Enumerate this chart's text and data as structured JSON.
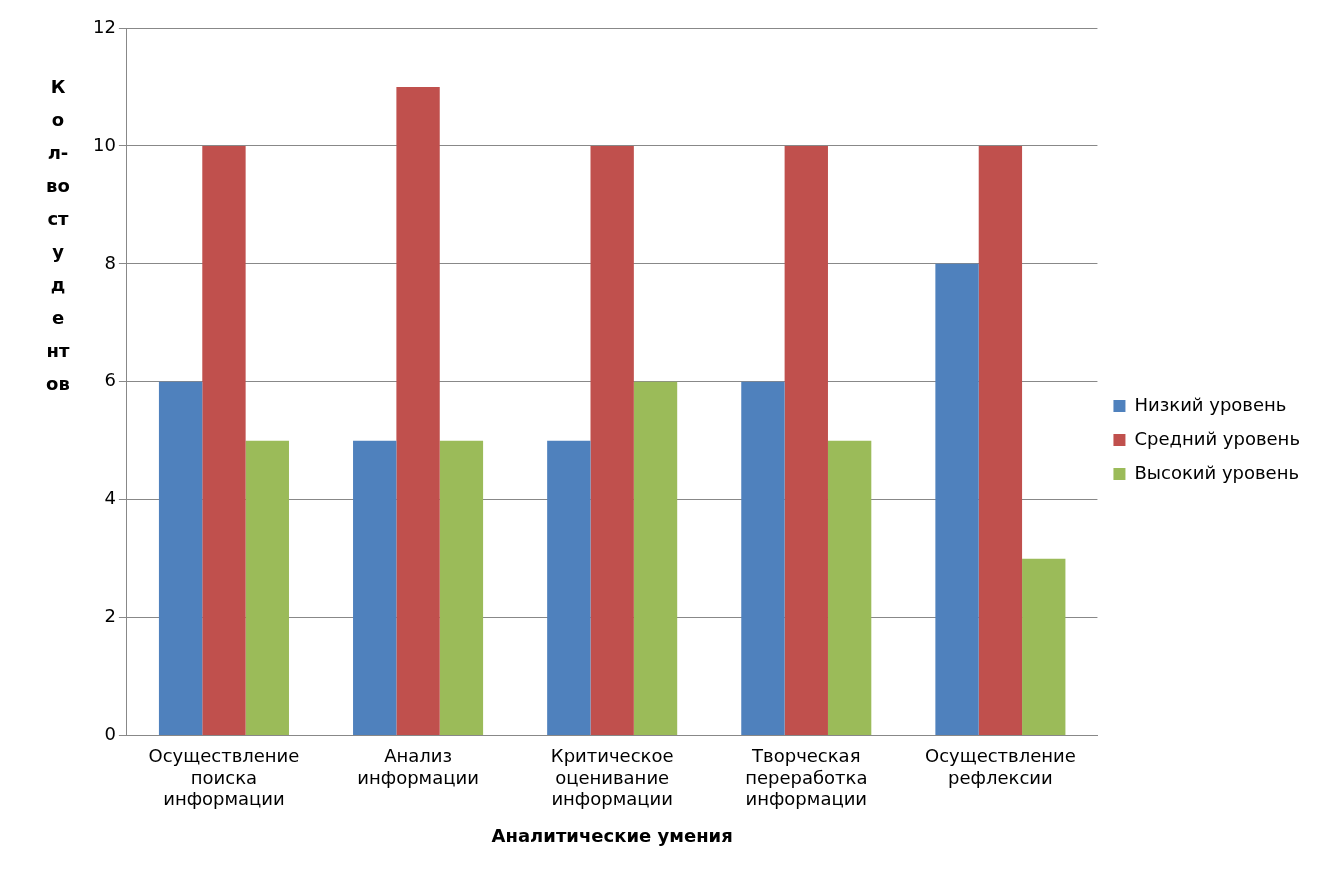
{
  "chart_data": {
    "type": "bar",
    "categories": [
      "Осуществление поиска информации",
      "Анализ информации",
      "Критическое оценивание информации",
      "Творческая переработка информации",
      "Осуществление рефлексии"
    ],
    "series": [
      {
        "name": "Низкий уровень",
        "color": "#4f81bd",
        "values": [
          6,
          5,
          5,
          6,
          8
        ]
      },
      {
        "name": "Средний уровень",
        "color": "#c0504d",
        "values": [
          10,
          11,
          10,
          10,
          10
        ]
      },
      {
        "name": "Высокий уровень",
        "color": "#9bbb59",
        "values": [
          5,
          5,
          6,
          5,
          3
        ]
      }
    ],
    "xlabel": "Аналитические умения",
    "ylabel": "Кол-во студентов",
    "ylim": [
      0,
      12
    ],
    "yticks": [
      0,
      2,
      4,
      6,
      8,
      10,
      12
    ],
    "grid": "y",
    "legend": "right"
  }
}
